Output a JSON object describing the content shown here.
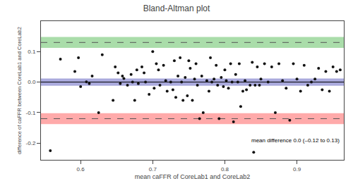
{
  "chart_data": {
    "type": "scatter",
    "title": "Bland-Altman plot",
    "xlabel": "mean caFFR of CoreLab1 and CoreLab2",
    "ylabel": "difference of caFFR between CoreLab1 and CoreLab2",
    "annotation": "mean difference 0.0 (–0.12 to 0.13)",
    "xlim": [
      0.545,
      0.965
    ],
    "ylim": [
      -0.255,
      0.2
    ],
    "xticks": [
      0.6,
      0.7,
      0.8,
      0.9
    ],
    "yticks": [
      -0.2,
      -0.1,
      {
        "value": 0.0,
        "label": "0.0"
      },
      0.1
    ],
    "grid": false,
    "color": "#111111",
    "bands": [
      {
        "low": 0.112,
        "high": 0.148,
        "color": "#aaddaa"
      },
      {
        "low": -0.138,
        "high": -0.102,
        "color": "#ffaaaa"
      },
      {
        "low": -0.012,
        "high": 0.012,
        "color": "#aaaadd"
      }
    ],
    "lines": [
      {
        "value": 0.13,
        "color": "#555555",
        "line_style": "dashed"
      },
      {
        "value": -0.12,
        "color": "#555555",
        "line_style": "dashed"
      },
      {
        "value": 0.0,
        "color": "#000000",
        "line_style": "solid"
      }
    ],
    "x": [
      0.558,
      0.572,
      0.592,
      0.597,
      0.6,
      0.608,
      0.612,
      0.616,
      0.625,
      0.63,
      0.645,
      0.648,
      0.652,
      0.655,
      0.658,
      0.66,
      0.665,
      0.67,
      0.672,
      0.675,
      0.678,
      0.68,
      0.685,
      0.688,
      0.69,
      0.695,
      0.7,
      0.702,
      0.705,
      0.708,
      0.71,
      0.715,
      0.718,
      0.72,
      0.725,
      0.728,
      0.73,
      0.732,
      0.735,
      0.738,
      0.74,
      0.742,
      0.745,
      0.748,
      0.75,
      0.752,
      0.755,
      0.758,
      0.76,
      0.762,
      0.765,
      0.768,
      0.77,
      0.775,
      0.778,
      0.78,
      0.782,
      0.785,
      0.788,
      0.79,
      0.792,
      0.795,
      0.798,
      0.8,
      0.802,
      0.805,
      0.808,
      0.81,
      0.812,
      0.815,
      0.818,
      0.82,
      0.822,
      0.825,
      0.828,
      0.83,
      0.835,
      0.838,
      0.84,
      0.842,
      0.845,
      0.848,
      0.85,
      0.855,
      0.86,
      0.865,
      0.87,
      0.875,
      0.88,
      0.885,
      0.89,
      0.895,
      0.9,
      0.905,
      0.91,
      0.915,
      0.92,
      0.925,
      0.93,
      0.935,
      0.94,
      0.945,
      0.95,
      0.955,
      0.96
    ],
    "values": [
      -0.225,
      0.075,
      0.035,
      0.08,
      -0.015,
      0.001,
      -0.005,
      0.02,
      -0.1,
      0.09,
      -0.06,
      0.05,
      0.03,
      -0.005,
      0.02,
      0.012,
      -0.01,
      0.025,
      0.0,
      -0.06,
      0.04,
      -0.005,
      0.05,
      0.03,
      0.0,
      -0.04,
      0.1,
      -0.02,
      0.06,
      0.04,
      -0.01,
      0.055,
      0.005,
      -0.03,
      0.0,
      -0.025,
      0.07,
      -0.05,
      0.02,
      0.08,
      0.0,
      -0.06,
      0.015,
      -0.045,
      0.07,
      0.045,
      -0.06,
      0.01,
      0.06,
      -0.01,
      -0.12,
      0.02,
      -0.1,
      0.005,
      -0.03,
      0.08,
      0.0,
      0.01,
      0.055,
      -0.01,
      -0.12,
      0.015,
      -0.015,
      0.04,
      0.005,
      -0.02,
      0.06,
      0.0,
      -0.13,
      0.025,
      0.0,
      0.06,
      -0.08,
      -0.03,
      0.005,
      -0.025,
      -0.01,
      0.065,
      -0.23,
      -0.01,
      0.05,
      -0.01,
      0.01,
      0.06,
      0.0,
      0.05,
      -0.1,
      0.06,
      0.005,
      -0.02,
      -0.125,
      0.06,
      0.01,
      -0.03,
      0.055,
      -0.01,
      0.0,
      0.01,
      0.045,
      -0.025,
      0.035,
      -0.03,
      0.05,
      0.035,
      0.04
    ]
  }
}
